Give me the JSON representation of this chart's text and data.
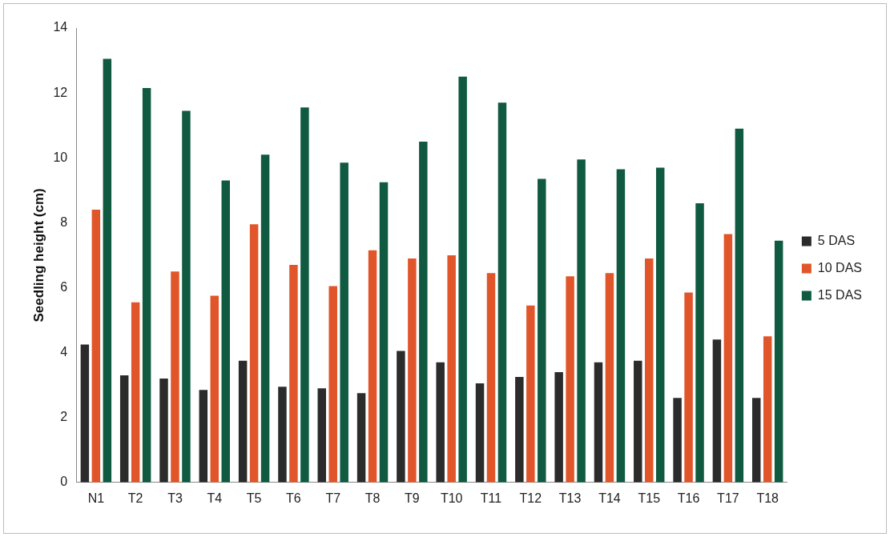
{
  "chart_data": {
    "type": "bar",
    "ylabel": "Seedling height (cm)",
    "categories": [
      "N1",
      "T2",
      "T3",
      "T4",
      "T5",
      "T6",
      "T7",
      "T8",
      "T9",
      "T10",
      "T11",
      "T12",
      "T13",
      "T14",
      "T15",
      "T16",
      "T17",
      "T18"
    ],
    "series": [
      {
        "name": "5 DAS",
        "color": "#2b2b2b",
        "values": [
          4.25,
          3.3,
          3.2,
          2.85,
          3.75,
          2.95,
          2.9,
          2.75,
          4.05,
          3.7,
          3.05,
          3.25,
          3.4,
          3.7,
          3.75,
          2.6,
          4.4,
          2.6
        ]
      },
      {
        "name": "10 DAS",
        "color": "#e0562a",
        "values": [
          8.4,
          5.55,
          6.5,
          5.75,
          7.95,
          6.7,
          6.05,
          7.15,
          6.9,
          7.0,
          6.45,
          5.45,
          6.35,
          6.45,
          6.9,
          5.85,
          7.65,
          4.5
        ]
      },
      {
        "name": "15 DAS",
        "color": "#0f5a40",
        "values": [
          13.05,
          12.15,
          11.45,
          9.3,
          10.1,
          11.55,
          9.85,
          9.25,
          10.5,
          12.5,
          11.7,
          9.35,
          9.95,
          9.65,
          9.7,
          8.6,
          10.9,
          7.45
        ]
      }
    ],
    "ylim": [
      0,
      14
    ],
    "yticks": [
      0,
      2,
      4,
      6,
      8,
      10,
      12,
      14
    ],
    "grid": false,
    "legend": "right"
  }
}
